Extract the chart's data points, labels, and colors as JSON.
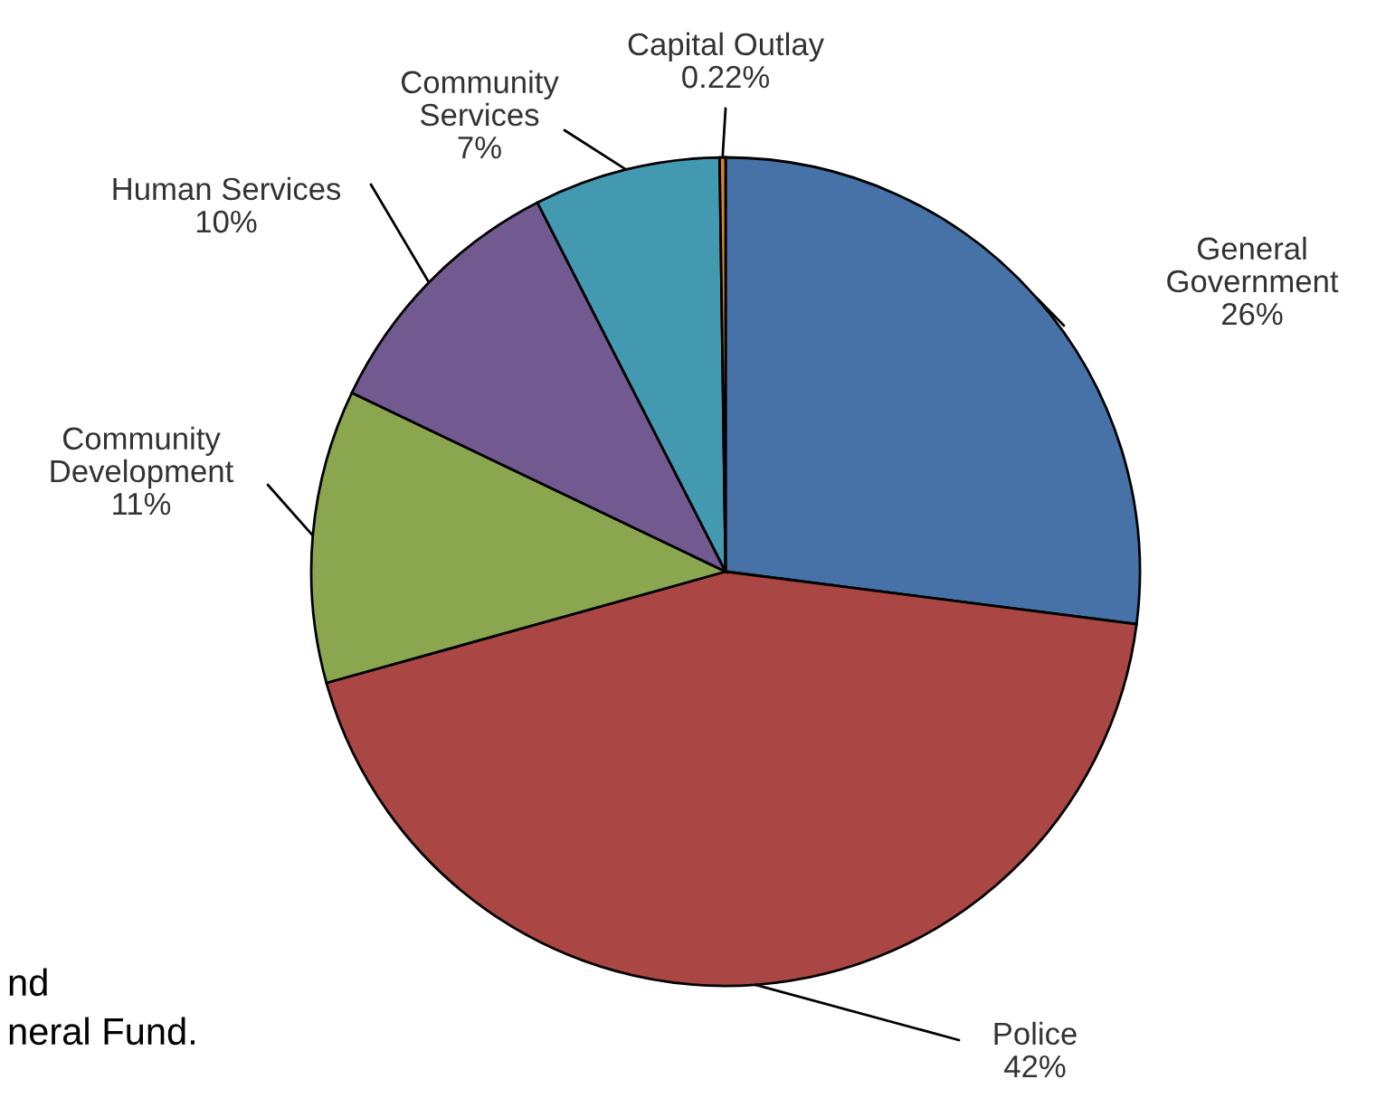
{
  "chart_data": {
    "type": "pie",
    "categories": [
      "General Government",
      "Police",
      "Community Development",
      "Human Services",
      "Community Services",
      "Capital Outlay"
    ],
    "values": [
      26,
      42,
      11,
      10,
      7,
      0.22
    ],
    "value_labels": [
      "26%",
      "42%",
      "11%",
      "10%",
      "7%",
      "0.22%"
    ],
    "colors": [
      "#4672a8",
      "#aa4744",
      "#8aa64f",
      "#725a91",
      "#4399b0",
      "#e0802f"
    ],
    "annotations": [
      "nd",
      "neral Fund."
    ]
  }
}
